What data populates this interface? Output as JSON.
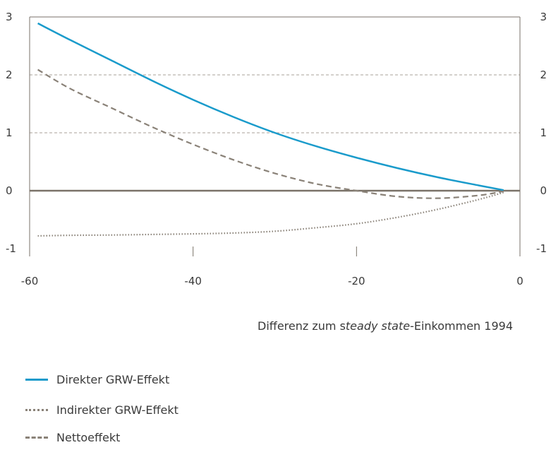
{
  "chart_data": {
    "type": "line",
    "title": "",
    "xlabel_parts": [
      "Differenz zum s",
      "teady state",
      "-Einkommen 1994"
    ],
    "ylabel": "",
    "xlim": [
      -60,
      0
    ],
    "ylim": [
      -1,
      3
    ],
    "x_ticks": [
      -60,
      -40,
      -20,
      0
    ],
    "x_tick_labels": [
      "-60",
      "-40",
      "-20",
      "0"
    ],
    "y_ticks": [
      3,
      2,
      1,
      0,
      -1
    ],
    "y_tick_labels": [
      "3",
      "2",
      "1",
      "0",
      "-1"
    ],
    "grid": "horizontal-dashed",
    "legend_position": "bottom-left",
    "colors": {
      "direct": "#1a9bcb",
      "indirect": "#8a8278",
      "net": "#8a8278",
      "zero_line": "#7a7268",
      "grid": "#a8a098",
      "axis": "#7a7268"
    },
    "series": [
      {
        "name": "Direkter GRW-Effekt",
        "style": "solid",
        "x": [
          -59,
          -55,
          -50,
          -45,
          -40,
          -35,
          -30,
          -25,
          -20,
          -15,
          -10,
          -5,
          -2
        ],
        "y": [
          2.89,
          2.6,
          2.25,
          1.9,
          1.57,
          1.27,
          1.0,
          0.77,
          0.57,
          0.39,
          0.23,
          0.09,
          0.01
        ]
      },
      {
        "name": "Indirekter GRW-Effekt",
        "style": "dotted",
        "x": [
          -59,
          -55,
          -50,
          -45,
          -40,
          -35,
          -30,
          -25,
          -20,
          -15,
          -10,
          -5,
          -2
        ],
        "y": [
          -0.78,
          -0.77,
          -0.765,
          -0.755,
          -0.745,
          -0.73,
          -0.7,
          -0.64,
          -0.57,
          -0.46,
          -0.32,
          -0.15,
          -0.03
        ]
      },
      {
        "name": "Nettoeffekt",
        "style": "dashed",
        "x": [
          -59,
          -55,
          -50,
          -45,
          -40,
          -35,
          -30,
          -25,
          -20,
          -15,
          -10,
          -5,
          -2
        ],
        "y": [
          2.09,
          1.76,
          1.43,
          1.1,
          0.8,
          0.53,
          0.3,
          0.12,
          0.0,
          -0.1,
          -0.13,
          -0.08,
          -0.01
        ]
      }
    ]
  }
}
